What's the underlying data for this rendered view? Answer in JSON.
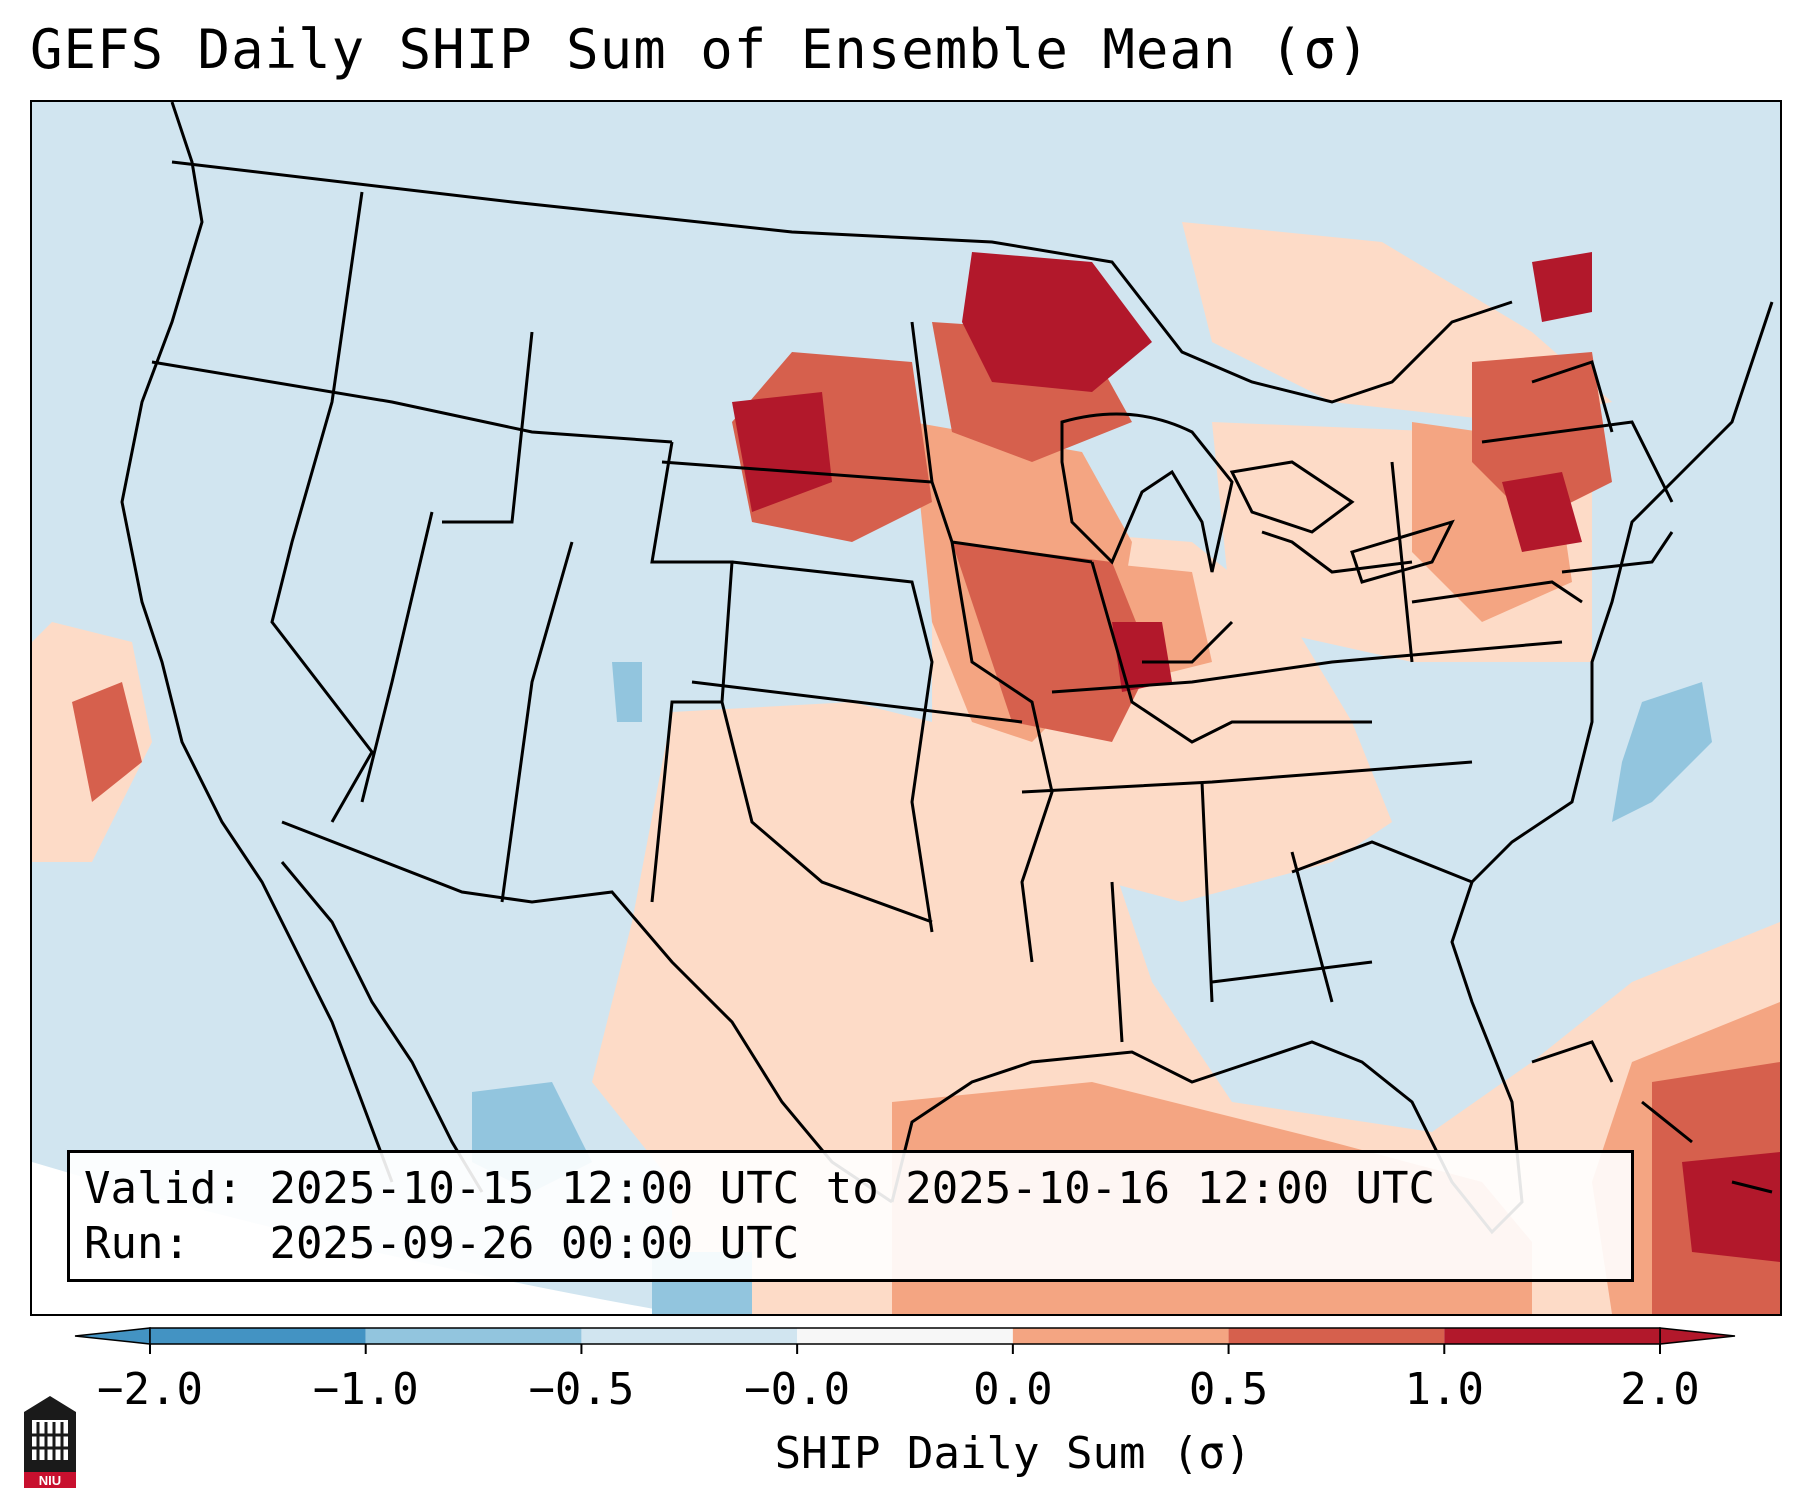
{
  "title": "GEFS Daily SHIP Sum of Ensemble Mean (σ)",
  "info": {
    "valid_label": "Valid:",
    "valid_value": "2025-10-15 12:00 UTC to 2025-10-16 12:00 UTC",
    "run_label": "Run:",
    "run_value": "2025-09-26 00:00 UTC"
  },
  "colorbar": {
    "label": "SHIP Daily Sum (σ)",
    "ticks": [
      "−2.0",
      "−1.0",
      "−0.5",
      "−0.0",
      "0.0",
      "0.5",
      "1.0",
      "2.0"
    ],
    "colors": [
      "#4393c3",
      "#92c5de",
      "#d1e5f0",
      "#f7f7f7",
      "#fddbc7",
      "#f4a582",
      "#d6604d",
      "#b2182b"
    ],
    "extend": "both"
  },
  "logo": {
    "text": "NIU",
    "icon": "university-building-logo"
  },
  "colors": {
    "ocean_background": "#d1e5f0",
    "outside_domain": "#ffffff"
  }
}
